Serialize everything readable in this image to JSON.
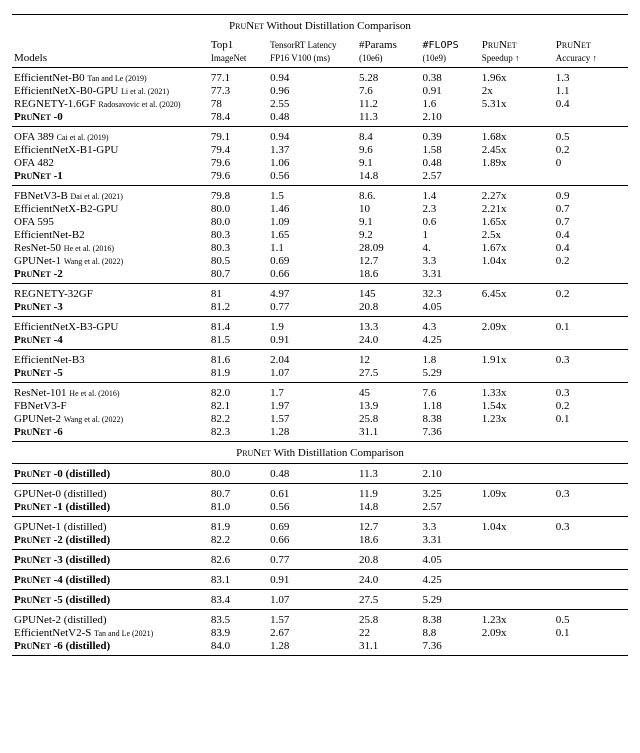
{
  "titles": {
    "without": "PruNet Without Distillation Comparison",
    "with": "PruNet With Distillation Comparison"
  },
  "headers": {
    "models": "Models",
    "top1_a": "Top1",
    "top1_b": "ImageNet",
    "lat_a": "TensorRT Latency",
    "lat_b": "FP16 V100 (ms)",
    "params_a": "#Params",
    "params_b": "(10e6)",
    "flops_a": "#FLOPS",
    "flops_b": "(10e9)",
    "speed_a": "PruNet",
    "speed_b": "Speedup ↑",
    "acc_a": "PruNet",
    "acc_b": "Accuracy ↑"
  },
  "groups1": [
    [
      {
        "m": "EfficientNet-B0",
        "ref": "Tan and Le (2019)",
        "t": "77.1",
        "l": "0.94",
        "p": "5.28",
        "f": "0.38",
        "s": "1.96x",
        "a": "1.3"
      },
      {
        "m": "EfficientNetX-B0-GPU",
        "ref": "Li et al. (2021)",
        "t": "77.3",
        "l": "0.96",
        "p": "7.6",
        "f": "0.91",
        "s": "2x",
        "a": "1.1"
      },
      {
        "m": "REGNETY-1.6GF",
        "ref": "Radosavovic et al. (2020)",
        "t": "78",
        "l": "2.55",
        "p": "11.2",
        "f": "1.6",
        "s": "5.31x",
        "a": "0.4"
      },
      {
        "m": "PruNet -0",
        "bold": true,
        "t": "78.4",
        "l": "0.48",
        "p": "11.3",
        "f": "2.10",
        "s": "",
        "a": ""
      }
    ],
    [
      {
        "m": "OFA 389",
        "ref": "Cai et al. (2019)",
        "t": "79.1",
        "l": "0.94",
        "p": "8.4",
        "f": "0.39",
        "s": "1.68x",
        "a": "0.5"
      },
      {
        "m": "EfficientNetX-B1-GPU",
        "t": "79.4",
        "l": "1.37",
        "p": "9.6",
        "f": "1.58",
        "s": "2.45x",
        "a": "0.2"
      },
      {
        "m": "OFA 482",
        "t": "79.6",
        "l": "1.06",
        "p": "9.1",
        "f": "0.48",
        "s": "1.89x",
        "a": "0"
      },
      {
        "m": "PruNet -1",
        "bold": true,
        "t": "79.6",
        "l": "0.56",
        "p": "14.8",
        "f": "2.57",
        "s": "",
        "a": ""
      }
    ],
    [
      {
        "m": "FBNetV3-B",
        "ref": "Dai et al. (2021)",
        "t": "79.8",
        "l": "1.5",
        "p": "8.6.",
        "f": "1.4",
        "s": "2.27x",
        "a": "0.9"
      },
      {
        "m": "EfficientNetX-B2-GPU",
        "t": "80.0",
        "l": "1.46",
        "p": "10",
        "f": "2.3",
        "s": "2.21x",
        "a": "0.7"
      },
      {
        "m": "OFA 595",
        "t": "80.0",
        "l": "1.09",
        "p": "9.1",
        "f": "0.6",
        "s": "1.65x",
        "a": "0.7"
      },
      {
        "m": "EfficientNet-B2",
        "t": "80.3",
        "l": "1.65",
        "p": "9.2",
        "f": "1",
        "s": "2.5x",
        "a": "0.4"
      },
      {
        "m": "ResNet-50",
        "ref": "He et al. (2016)",
        "t": "80.3",
        "l": "1.1",
        "p": "28.09",
        "f": "4.",
        "s": "1.67x",
        "a": "0.4"
      },
      {
        "m": "GPUNet-1",
        "ref": "Wang et al. (2022)",
        "t": "80.5",
        "l": "0.69",
        "p": "12.7",
        "f": "3.3",
        "s": "1.04x",
        "a": "0.2"
      },
      {
        "m": "PruNet -2",
        "bold": true,
        "t": "80.7",
        "l": "0.66",
        "p": "18.6",
        "f": "3.31",
        "s": "",
        "a": ""
      }
    ],
    [
      {
        "m": "REGNETY-32GF",
        "t": "81",
        "l": "4.97",
        "p": "145",
        "f": "32.3",
        "s": "6.45x",
        "a": "0.2"
      },
      {
        "m": "PruNet -3",
        "bold": true,
        "t": "81.2",
        "l": "0.77",
        "p": "20.8",
        "f": "4.05",
        "s": "",
        "a": ""
      }
    ],
    [
      {
        "m": "EfficientNetX-B3-GPU",
        "t": "81.4",
        "l": "1.9",
        "p": "13.3",
        "f": "4.3",
        "s": "2.09x",
        "a": "0.1"
      },
      {
        "m": "PruNet -4",
        "bold": true,
        "t": "81.5",
        "l": "0.91",
        "p": "24.0",
        "f": "4.25",
        "s": "",
        "a": ""
      }
    ],
    [
      {
        "m": "EfficientNet-B3",
        "t": "81.6",
        "l": "2.04",
        "p": "12",
        "f": "1.8",
        "s": "1.91x",
        "a": "0.3"
      },
      {
        "m": "PruNet -5",
        "bold": true,
        "t": "81.9",
        "l": "1.07",
        "p": "27.5",
        "f": "5.29",
        "s": "",
        "a": ""
      }
    ],
    [
      {
        "m": "ResNet-101",
        "ref": "He et al. (2016)",
        "t": "82.0",
        "l": "1.7",
        "p": "45",
        "f": "7.6",
        "s": "1.33x",
        "a": "0.3"
      },
      {
        "m": "FBNetV3-F",
        "t": "82.1",
        "l": "1.97",
        "p": "13.9",
        "f": "1.18",
        "s": "1.54x",
        "a": "0.2"
      },
      {
        "m": "GPUNet-2",
        "ref": "Wang et al. (2022)",
        "t": "82.2",
        "l": "1.57",
        "p": "25.8",
        "f": "8.38",
        "s": "1.23x",
        "a": "0.1"
      },
      {
        "m": "PruNet -6",
        "bold": true,
        "t": "82.3",
        "l": "1.28",
        "p": "31.1",
        "f": "7.36",
        "s": "",
        "a": ""
      }
    ]
  ],
  "groups2": [
    [
      {
        "m": "PruNet -0 (distilled)",
        "bold": true,
        "t": "80.0",
        "l": "0.48",
        "p": "11.3",
        "f": "2.10",
        "s": "",
        "a": ""
      }
    ],
    [
      {
        "m": "GPUNet-0 (distilled)",
        "t": "80.7",
        "l": "0.61",
        "p": "11.9",
        "f": "3.25",
        "s": "1.09x",
        "a": "0.3"
      },
      {
        "m": "PruNet -1 (distilled)",
        "bold": true,
        "t": "81.0",
        "l": "0.56",
        "p": "14.8",
        "f": "2.57",
        "s": "",
        "a": ""
      }
    ],
    [
      {
        "m": "GPUNet-1 (distilled)",
        "t": "81.9",
        "l": "0.69",
        "p": "12.7",
        "f": "3.3",
        "s": "1.04x",
        "a": "0.3"
      },
      {
        "m": "PruNet -2 (distilled)",
        "bold": true,
        "t": "82.2",
        "l": "0.66",
        "p": "18.6",
        "f": "3.31",
        "s": "",
        "a": ""
      }
    ],
    [
      {
        "m": "PruNet -3 (distilled)",
        "bold": true,
        "t": "82.6",
        "l": "0.77",
        "p": "20.8",
        "f": "4.05",
        "s": "",
        "a": ""
      }
    ],
    [
      {
        "m": "PruNet -4 (distilled)",
        "bold": true,
        "t": "83.1",
        "l": "0.91",
        "p": "24.0",
        "f": "4.25",
        "s": "",
        "a": ""
      }
    ],
    [
      {
        "m": "PruNet -5 (distilled)",
        "bold": true,
        "t": "83.4",
        "l": "1.07",
        "p": "27.5",
        "f": "5.29",
        "s": "",
        "a": ""
      }
    ],
    [
      {
        "m": "GPUNet-2 (distilled)",
        "t": "83.5",
        "l": "1.57",
        "p": "25.8",
        "f": "8.38",
        "s": "1.23x",
        "a": "0.5"
      },
      {
        "m": "EfficientNetV2-S",
        "ref": "Tan and Le (2021)",
        "t": "83.9",
        "l": "2.67",
        "p": "22",
        "f": "8.8",
        "s": "2.09x",
        "a": "0.1"
      },
      {
        "m": "PruNet -6 (distilled)",
        "bold": true,
        "t": "84.0",
        "l": "1.28",
        "p": "31.1",
        "f": "7.36",
        "s": "",
        "a": ""
      }
    ]
  ]
}
